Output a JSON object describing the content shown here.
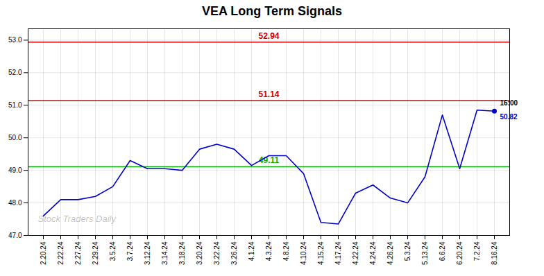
{
  "chart_data": {
    "type": "line",
    "title": "VEA Long Term Signals",
    "categories": [
      "2.20.24",
      "2.22.24",
      "2.27.24",
      "2.29.24",
      "3.5.24",
      "3.7.24",
      "3.12.24",
      "3.14.24",
      "3.18.24",
      "3.20.24",
      "3.22.24",
      "3.26.24",
      "4.1.24",
      "4.3.24",
      "4.8.24",
      "4.10.24",
      "4.15.24",
      "4.17.24",
      "4.22.24",
      "4.24.24",
      "4.26.24",
      "5.3.24",
      "5.13.24",
      "6.6.24",
      "6.20.24",
      "7.2.24",
      "8.16.24"
    ],
    "values": [
      47.6,
      48.1,
      48.1,
      48.2,
      48.5,
      49.3,
      49.05,
      49.05,
      49.0,
      49.65,
      49.8,
      49.65,
      49.15,
      49.45,
      49.45,
      48.9,
      47.4,
      47.35,
      48.3,
      48.55,
      48.15,
      48.0,
      48.8,
      50.7,
      49.05,
      50.85,
      50.82
    ],
    "color": "#0000cc",
    "hlines": [
      {
        "value": 51.14,
        "color": "#cc0000"
      },
      {
        "value": 52.94,
        "color": "#cc0000"
      },
      {
        "value": 49.11,
        "color": "#00aa00"
      }
    ],
    "last_time": "16:00",
    "last_price": 50.82,
    "watermark": "Stock Traders Daily",
    "ylim": [
      47.0,
      53.35
    ],
    "yticks": [
      47,
      48,
      49,
      50,
      51,
      52,
      53
    ],
    "grid": true
  }
}
